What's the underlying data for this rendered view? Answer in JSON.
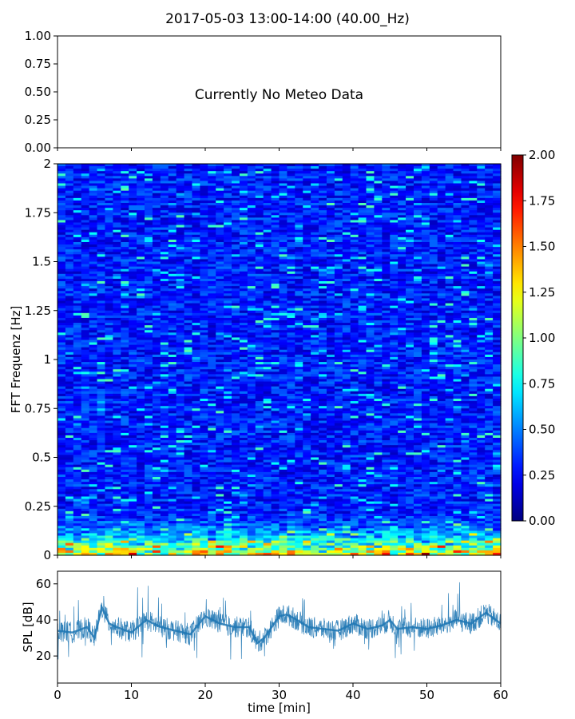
{
  "title": "2017-05-03 13:00-14:00 (40.00_Hz)",
  "chart_data": [
    {
      "type": "line",
      "panel": "meteo",
      "annotation": "Currently No Meteo Data",
      "ylim": [
        0,
        1
      ],
      "yticks": [
        "0.00",
        "0.25",
        "0.50",
        "0.75",
        "1.00"
      ],
      "series": []
    },
    {
      "type": "heatmap",
      "panel": "spectrogram",
      "ylabel": "FFT Frequenz [Hz]",
      "xlim": [
        0,
        60
      ],
      "ylim": [
        0,
        2
      ],
      "yticks": [
        "0",
        "0.25",
        "0.5",
        "0.75",
        "1",
        "1.25",
        "1.5",
        "1.75",
        "2"
      ],
      "colormap": "jet",
      "color_range": [
        0,
        2
      ],
      "colorbar_ticks": [
        "0.00",
        "0.25",
        "0.50",
        "0.75",
        "1.00",
        "1.25",
        "1.50",
        "1.75",
        "2.00"
      ],
      "description_values": {
        "background_level": 0.3,
        "low_freq_band_level": 1.4,
        "low_freq_band_max_hz": 0.25
      }
    },
    {
      "type": "line",
      "panel": "spl",
      "xlabel": "time [min]",
      "ylabel": "SPL [dB]",
      "xlim": [
        0,
        60
      ],
      "ylim": [
        5,
        67
      ],
      "xticks": [
        "0",
        "10",
        "20",
        "30",
        "40",
        "50",
        "60"
      ],
      "yticks": [
        "20",
        "40",
        "60"
      ],
      "color": "#1f77b4",
      "x": [
        0,
        2,
        4,
        5,
        6,
        7,
        8,
        10,
        12,
        14,
        16,
        18,
        20,
        22,
        24,
        26,
        27,
        28,
        30,
        31,
        32,
        34,
        36,
        38,
        40,
        42,
        44,
        45,
        46,
        48,
        50,
        52,
        54,
        56,
        58,
        60
      ],
      "y": [
        34,
        33,
        36,
        30,
        47,
        38,
        36,
        33,
        40,
        36,
        34,
        32,
        42,
        38,
        36,
        36,
        27,
        30,
        42,
        43,
        41,
        36,
        35,
        34,
        38,
        35,
        37,
        40,
        35,
        36,
        35,
        37,
        40,
        38,
        44,
        38
      ],
      "spread": 6
    }
  ]
}
